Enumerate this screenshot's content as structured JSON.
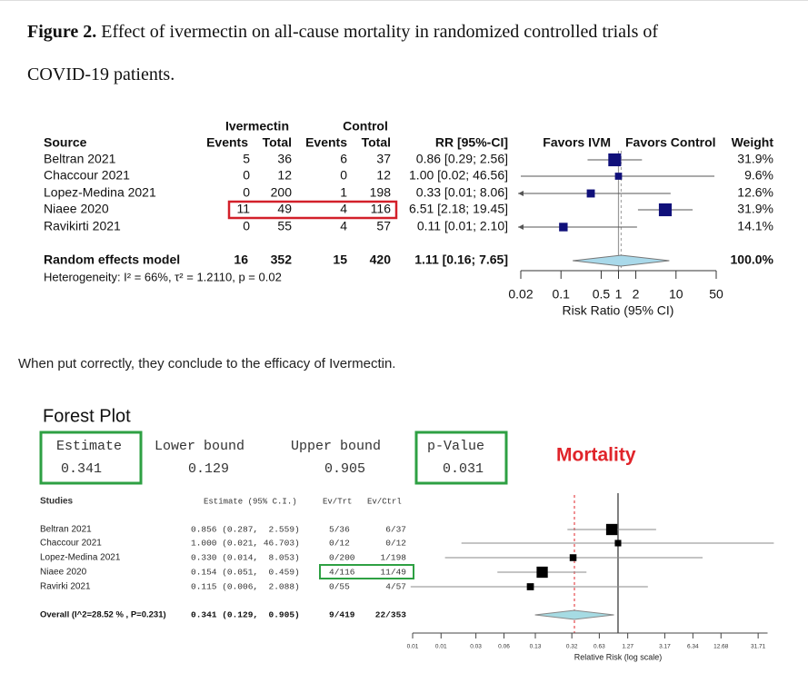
{
  "caption": {
    "label": "Figure 2.",
    "text": "Effect of ivermectin on all-cause mortality in randomized controlled trials of COVID-19 patients."
  },
  "paragraph": "When put correctly, they conclude to the efficacy of Ivermectin.",
  "chart_data": [
    {
      "type": "forest",
      "group_labels": [
        "Ivermectin",
        "Control"
      ],
      "columns": [
        "Source",
        "Events",
        "Total",
        "Events",
        "Total",
        "RR [95%-CI]",
        "Favors IVM",
        "Favors Control",
        "Weight"
      ],
      "studies": [
        "Beltran 2021",
        "Chaccour 2021",
        "Lopez-Medina 2021",
        "Niaee 2020",
        "Ravikirti 2021"
      ],
      "trt_events": [
        5,
        0,
        0,
        11,
        0
      ],
      "trt_totals": [
        36,
        12,
        200,
        49,
        55
      ],
      "ctrl_events": [
        6,
        0,
        1,
        4,
        4
      ],
      "ctrl_totals": [
        37,
        12,
        198,
        116,
        57
      ],
      "values": [
        0.86,
        1,
        0.33,
        6.51,
        0.11
      ],
      "ci_low": [
        0.29,
        0.02,
        0.01,
        2.18,
        0.01
      ],
      "ci_high": [
        2.56,
        46.56,
        8.06,
        19.45,
        2.1
      ],
      "value_labels": [
        "0.86 [0.29; 2.56]",
        "1.00 [0.02; 46.56]",
        "0.33 [0.01; 8.06]",
        "6.51 [2.18; 19.45]",
        "0.11 [0.01; 2.10]"
      ],
      "weights": [
        31.9,
        9.6,
        12.6,
        31.9,
        14.1
      ],
      "weight_labels": [
        "31.9%",
        "9.6%",
        "12.6%",
        "31.9%",
        "14.1%"
      ],
      "summary": {
        "label": "Random effects model",
        "trt_events": 16,
        "trt_total": 352,
        "ctrl_events": 15,
        "ctrl_total": 420,
        "value": 1.11,
        "ci_low": 0.16,
        "ci_high": 7.65,
        "value_label": "1.11 [0.16; 7.65]",
        "weight": 100,
        "weight_label": "100.0%"
      },
      "heterogeneity": "Heterogeneity: I² = 66%, τ² = 1.2110, p = 0.02",
      "xscale": "log",
      "xlim": [
        0.02,
        50
      ],
      "xticks": [
        0.02,
        0.1,
        0.5,
        1,
        2,
        10,
        50
      ],
      "xlabel": "Risk Ratio (95% CI)",
      "reference_line": 1,
      "color": "#10107a",
      "diamond_color": "#a9d9ea"
    },
    {
      "type": "forest",
      "title": "Forest Plot",
      "annotation": "Mortality",
      "summary_headers": [
        "Estimate",
        "Lower bound",
        "Upper bound",
        "p-Value"
      ],
      "summary_values": [
        0.341,
        0.129,
        0.905,
        0.031
      ],
      "columns": [
        "Studies",
        "Estimate (95% C.I.)",
        "Ev/Trt",
        "Ev/Ctrl"
      ],
      "studies": [
        "Beltran 2021",
        "Chaccour 2021",
        "Lopez-Medina 2021",
        "Niaee 2020",
        "Ravirki 2021"
      ],
      "values": [
        0.856,
        1,
        0.33,
        0.154,
        0.115
      ],
      "ci_low": [
        0.287,
        0.021,
        0.014,
        0.051,
        0.006
      ],
      "ci_high": [
        2.559,
        46.703,
        8.053,
        0.459,
        2.088
      ],
      "value_labels": [
        "0.856 (0.287,  2.559)",
        "1.000 (0.021, 46.703)",
        "0.330 (0.014,  8.053)",
        "0.154 (0.051,  0.459)",
        "0.115 (0.006,  2.088)"
      ],
      "ev_trt": [
        "5/36",
        "0/12",
        "0/200",
        "4/116",
        "0/55"
      ],
      "ev_ctrl": [
        "6/37",
        "0/12",
        "1/198",
        "11/49",
        "4/57"
      ],
      "summary": {
        "label": "Overall (I^2=28.52 % , P=0.231)",
        "value": 0.341,
        "ci_low": 0.129,
        "ci_high": 0.905,
        "value_label": "0.341 (0.129,  0.905)",
        "ev_trt": "9/419",
        "ev_ctrl": "22/353"
      },
      "xscale": "log",
      "xlim": [
        0.0063,
        40
      ],
      "xticks": [
        {
          "value": 0.0063,
          "label": "0.01"
        },
        {
          "value": 0.0127,
          "label": "0.01"
        },
        0.03,
        0.06,
        0.13,
        0.32,
        0.63,
        1.27,
        3.17,
        6.34,
        12.68,
        31.71
      ],
      "xlabel": "Relative Risk (log scale)",
      "reference_line": 1,
      "color": "#000000",
      "diamond_color": "#a6dbe3"
    }
  ]
}
